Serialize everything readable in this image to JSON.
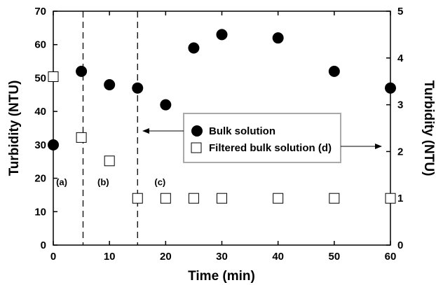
{
  "chart_data": {
    "type": "scatter",
    "xlabel": "Time (min)",
    "ylabel_left": "Turbidity (NTU)",
    "ylabel_right": "Turbidity (NTU)",
    "xlim": [
      0,
      60
    ],
    "ylim_left": [
      0,
      70
    ],
    "ylim_right": [
      0,
      5
    ],
    "x_ticks": [
      0,
      10,
      20,
      30,
      40,
      50,
      60
    ],
    "y_ticks_left": [
      0,
      10,
      20,
      30,
      40,
      50,
      60,
      70
    ],
    "y_ticks_right": [
      0,
      1,
      2,
      3,
      4,
      5
    ],
    "grid": false,
    "legend_position": "center-right",
    "series": [
      {
        "name": "Bulk solution",
        "axis": "left",
        "marker": "filled-circle",
        "x": [
          0,
          5,
          10,
          15,
          20,
          25,
          30,
          40,
          50,
          60
        ],
        "y": [
          30,
          52,
          48,
          47,
          42,
          59,
          63,
          62,
          52,
          47
        ]
      },
      {
        "name": "Filtered bulk solution (d)",
        "axis": "right",
        "marker": "open-square",
        "x": [
          0,
          5,
          10,
          15,
          20,
          25,
          30,
          40,
          50,
          60
        ],
        "y": [
          3.6,
          2.3,
          1.8,
          1.0,
          1.0,
          1.0,
          1.0,
          1.0,
          1.0,
          1.0
        ]
      }
    ],
    "vertical_lines": [
      5.3,
      15
    ],
    "annotations": [
      {
        "text": "(a)",
        "x": 1.5,
        "y": 20
      },
      {
        "text": "(b)",
        "x": 8.9,
        "y": 20
      },
      {
        "text": "(c)",
        "x": 19.0,
        "y": 20
      }
    ]
  }
}
